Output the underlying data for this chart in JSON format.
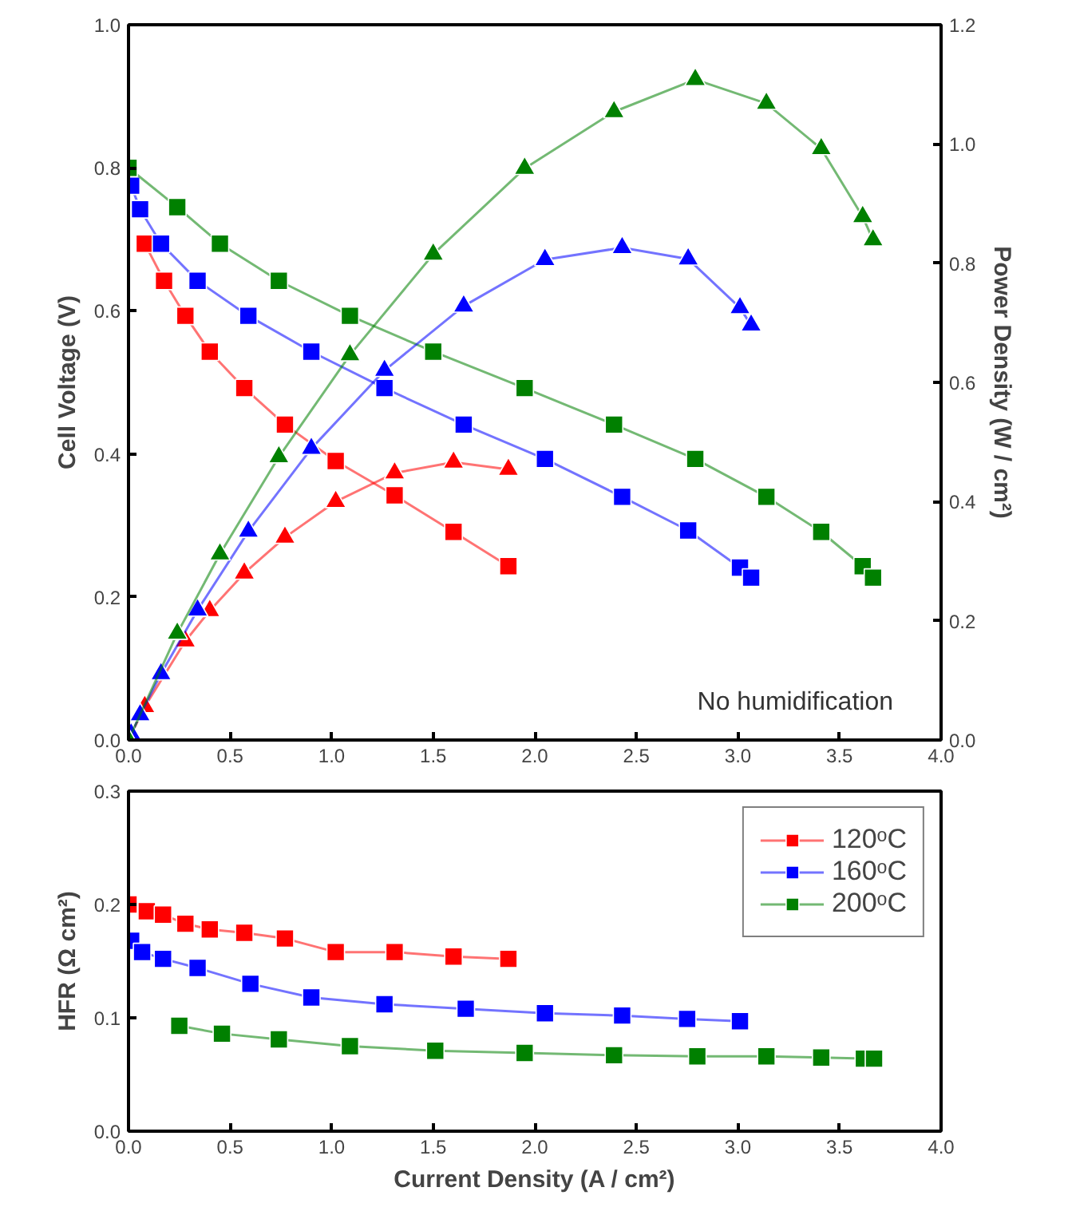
{
  "chart_data": [
    {
      "type": "line",
      "ylabel": "Cell Voltage (V)",
      "y2label": "Power Density (W / cm²)",
      "annotations": [
        "No humidification"
      ],
      "xlim": [
        0,
        4
      ],
      "xticks": [
        {
          "value": 0,
          "label": "0.0"
        },
        {
          "value": 0.5,
          "label": "0.5"
        },
        {
          "value": 1,
          "label": "1.0"
        },
        {
          "value": 1.5,
          "label": "1.5"
        },
        {
          "value": 2,
          "label": "2.0"
        },
        {
          "value": 2.5,
          "label": "2.5"
        },
        {
          "value": 3,
          "label": "3.0"
        },
        {
          "value": 3.5,
          "label": "3.5"
        },
        {
          "value": 4,
          "label": "4.0"
        }
      ],
      "ylim": [
        0,
        1
      ],
      "yticks": [
        {
          "value": 0,
          "label": "0.0"
        },
        {
          "value": 0.2,
          "label": "0.2"
        },
        {
          "value": 0.4,
          "label": "0.4"
        },
        {
          "value": 0.6,
          "label": "0.6"
        },
        {
          "value": 0.8,
          "label": "0.8"
        },
        {
          "value": 1,
          "label": "1.0"
        }
      ],
      "y2lim": [
        0,
        1.2
      ],
      "y2ticks": [
        {
          "value": 0,
          "label": "0.0"
        },
        {
          "value": 0.2,
          "label": "0.2"
        },
        {
          "value": 0.4,
          "label": "0.4"
        },
        {
          "value": 0.6,
          "label": "0.6"
        },
        {
          "value": 0.8,
          "label": "0.8"
        },
        {
          "value": 1,
          "label": "1.0"
        },
        {
          "value": 1.2,
          "label": "1.2"
        }
      ],
      "grid": false,
      "legend": false,
      "line_style": "solid",
      "series": [
        {
          "color": "#ff0000",
          "marker": "square",
          "x": [
            0.08,
            0.175,
            0.28,
            0.4,
            0.57,
            0.77,
            1.02,
            1.31,
            1.6,
            1.87
          ],
          "values": [
            0.694,
            0.642,
            0.593,
            0.543,
            0.492,
            0.441,
            0.39,
            0.342,
            0.291,
            0.243
          ]
        },
        {
          "color": "#0000ff",
          "marker": "square",
          "x": [
            0.013,
            0.057,
            0.16,
            0.34,
            0.59,
            0.9,
            1.26,
            1.65,
            2.05,
            2.43,
            2.755,
            3.01,
            3.065
          ],
          "values": [
            0.775,
            0.742,
            0.694,
            0.642,
            0.593,
            0.543,
            0.492,
            0.441,
            0.393,
            0.34,
            0.293,
            0.241,
            0.227
          ]
        },
        {
          "color": "#008000",
          "marker": "square",
          "x": [
            0.0,
            0.24,
            0.45,
            0.74,
            1.09,
            1.5,
            1.95,
            2.39,
            2.79,
            3.14,
            3.41,
            3.614,
            3.665
          ],
          "values": [
            0.8,
            0.745,
            0.694,
            0.642,
            0.593,
            0.543,
            0.492,
            0.441,
            0.393,
            0.34,
            0.291,
            0.243,
            0.227
          ]
        },
        {
          "color": "#ff0000",
          "marker": "triangle",
          "axis": "y2",
          "x": [
            0.0,
            0.05,
            0.08,
            0.175,
            0.28,
            0.4,
            0.57,
            0.77,
            1.02,
            1.31,
            1.6,
            1.87
          ],
          "values": [
            0.0,
            null,
            0.056,
            null,
            0.166,
            0.217,
            0.28,
            0.34,
            0.4,
            0.448,
            0.466,
            0.454
          ]
        },
        {
          "color": "#0000ff",
          "marker": "triangle",
          "axis": "y2",
          "x": [
            0.013,
            0.057,
            0.16,
            0.34,
            0.59,
            0.9,
            1.26,
            1.65,
            2.05,
            2.43,
            2.755,
            3.01,
            3.065
          ],
          "values": [
            0.01,
            0.042,
            0.111,
            0.218,
            0.35,
            0.489,
            0.62,
            0.728,
            0.806,
            0.826,
            0.807,
            0.725,
            0.696
          ]
        },
        {
          "color": "#008000",
          "marker": "triangle",
          "axis": "y2",
          "x": [
            0.0,
            0.24,
            0.45,
            0.74,
            1.09,
            1.5,
            1.95,
            2.39,
            2.79,
            3.14,
            3.41,
            3.614,
            3.665
          ],
          "values": [
            0.0,
            0.179,
            0.312,
            0.475,
            0.646,
            0.815,
            0.959,
            1.054,
            1.108,
            1.068,
            0.992,
            0.878,
            0.839
          ]
        }
      ]
    },
    {
      "type": "line",
      "xlabel": "Current Density (A / cm²)",
      "ylabel": "HFR (Ω cm²)",
      "xlim": [
        0,
        4
      ],
      "xticks": [
        {
          "value": 0,
          "label": "0.0"
        },
        {
          "value": 0.5,
          "label": "0.5"
        },
        {
          "value": 1,
          "label": "1.0"
        },
        {
          "value": 1.5,
          "label": "1.5"
        },
        {
          "value": 2,
          "label": "2.0"
        },
        {
          "value": 2.5,
          "label": "2.5"
        },
        {
          "value": 3,
          "label": "3.0"
        },
        {
          "value": 3.5,
          "label": "3.5"
        },
        {
          "value": 4,
          "label": "4.0"
        }
      ],
      "ylim": [
        0,
        0.3
      ],
      "yticks": [
        {
          "value": 0,
          "label": "0.0"
        },
        {
          "value": 0.1,
          "label": "0.1"
        },
        {
          "value": 0.2,
          "label": "0.2"
        },
        {
          "value": 0.3,
          "label": "0.3"
        }
      ],
      "grid": false,
      "legend": "top right",
      "marker": "square",
      "line_style": "solid",
      "series": [
        {
          "name": "120ᵒC",
          "color": "#ff0000",
          "x": [
            0,
            0.04,
            0.09,
            0.17,
            0.28,
            0.4,
            0.57,
            0.77,
            1.02,
            1.31,
            1.6,
            1.87
          ],
          "values": [
            0.2,
            null,
            0.194,
            0.191,
            0.183,
            0.178,
            0.175,
            0.17,
            0.158,
            0.158,
            0.154,
            0.152
          ]
        },
        {
          "name": "160ᵒC",
          "color": "#0000ff",
          "x": [
            0.013,
            0.067,
            0.17,
            0.34,
            0.6,
            0.9,
            1.26,
            1.66,
            2.05,
            2.43,
            2.75,
            3.01
          ],
          "values": [
            0.168,
            0.158,
            0.152,
            0.144,
            0.13,
            0.118,
            0.112,
            0.108,
            0.104,
            0.102,
            0.099,
            0.097
          ]
        },
        {
          "name": "200ᵒC",
          "color": "#008000",
          "x": [
            0.25,
            0.46,
            0.74,
            1.09,
            1.51,
            1.95,
            2.39,
            2.8,
            3.14,
            3.41,
            3.62,
            3.67
          ],
          "values": [
            0.093,
            0.086,
            0.081,
            0.075,
            0.071,
            0.069,
            0.067,
            0.066,
            0.066,
            0.065,
            0.064,
            0.064
          ]
        }
      ]
    }
  ]
}
